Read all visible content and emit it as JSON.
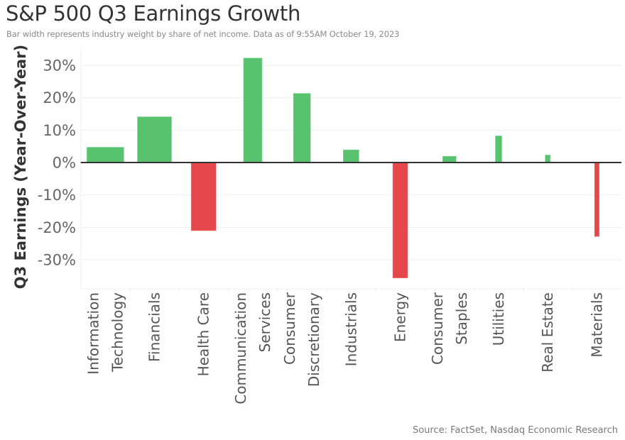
{
  "header": {
    "title": "S&P 500 Q3 Earnings Growth",
    "subtitle": "Bar width represents industry weight by share of net income. Data as of 9:55AM October 19, 2023"
  },
  "footer": {
    "source": "Source: FactSet, Nasdaq Economic Research"
  },
  "colors": {
    "positive": "#59C26F",
    "negative": "#E5474A",
    "zero_line": "#333333",
    "gridline": "#EFEFEF"
  },
  "chart_data": {
    "type": "bar",
    "title": "S&P 500 Q3 Earnings Growth",
    "subtitle": "Bar width represents industry weight by share of net income. Data as of 9:55AM October 19, 2023",
    "xlabel": "",
    "ylabel": "Q3 Earnings (Year-Over-Year)",
    "ylim": [
      -40,
      36
    ],
    "yticks": [
      30,
      20,
      10,
      0,
      -10,
      -20,
      -30
    ],
    "ytick_labels": [
      "30%",
      "20%",
      "10%",
      "0%",
      "-10%",
      "-20%",
      "-30%"
    ],
    "grid": true,
    "legend": "none",
    "categories": [
      "Information Technology",
      "Financials",
      "Health Care",
      "Communication Services",
      "Consumer Discretionary",
      "Industrials",
      "Energy",
      "Consumer Staples",
      "Utilities",
      "Real Estate",
      "Materials"
    ],
    "category_label_lines": [
      [
        "Information",
        "Technology"
      ],
      [
        "Financials"
      ],
      [
        "Health Care"
      ],
      [
        "Communication",
        "Services"
      ],
      [
        "Consumer",
        "Discretionary"
      ],
      [
        "Industrials"
      ],
      [
        "Energy"
      ],
      [
        "Consumer",
        "Staples"
      ],
      [
        "Utilities"
      ],
      [
        "Real Estate"
      ],
      [
        "Materials"
      ]
    ],
    "values": [
      4.7,
      14.1,
      -21.0,
      32.2,
      21.3,
      3.9,
      -35.6,
      1.9,
      8.2,
      2.3,
      -22.8
    ],
    "relative_weight": [
      52,
      48,
      35,
      26,
      24,
      22,
      21,
      19,
      9,
      7,
      6.5
    ]
  }
}
